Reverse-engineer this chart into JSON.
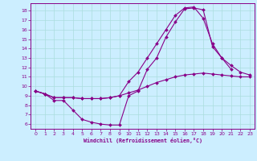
{
  "xlabel": "Windchill (Refroidissement éolien,°C)",
  "bg_color": "#cceeff",
  "plot_bg_color": "#cceeff",
  "grid_color": "#aadddd",
  "line_color": "#880088",
  "xlim": [
    -0.5,
    23.5
  ],
  "ylim": [
    5.5,
    18.8
  ],
  "xticks": [
    0,
    1,
    2,
    3,
    4,
    5,
    6,
    7,
    8,
    9,
    10,
    11,
    12,
    13,
    14,
    15,
    16,
    17,
    18,
    19,
    20,
    21,
    22,
    23
  ],
  "yticks": [
    6,
    7,
    8,
    9,
    10,
    11,
    12,
    13,
    14,
    15,
    16,
    17,
    18
  ],
  "lines": [
    {
      "x": [
        0,
        1,
        2,
        3,
        4,
        5,
        6,
        7,
        8,
        9,
        10,
        11,
        12,
        13,
        14,
        15,
        16,
        17,
        18,
        19,
        20,
        21,
        22,
        23
      ],
      "y": [
        9.5,
        9.2,
        8.5,
        8.5,
        7.5,
        6.5,
        6.2,
        6.0,
        5.9,
        5.9,
        9.0,
        9.5,
        11.8,
        13.0,
        15.2,
        16.8,
        18.2,
        18.3,
        18.1,
        14.2,
        13.0,
        12.2,
        11.5,
        11.2
      ]
    },
    {
      "x": [
        0,
        1,
        2,
        3,
        4,
        5,
        6,
        7,
        8,
        9,
        10,
        11,
        12,
        13,
        14,
        15,
        16,
        17,
        18,
        19,
        20,
        21,
        22,
        23
      ],
      "y": [
        9.5,
        9.2,
        8.8,
        8.8,
        8.8,
        8.7,
        8.7,
        8.7,
        8.8,
        9.0,
        9.3,
        9.6,
        10.0,
        10.4,
        10.7,
        11.0,
        11.2,
        11.3,
        11.4,
        11.3,
        11.2,
        11.1,
        11.0,
        11.0
      ]
    },
    {
      "x": [
        0,
        1,
        2,
        3,
        4,
        5,
        6,
        7,
        8,
        9,
        10,
        11,
        12,
        13,
        14,
        15,
        16,
        17,
        18,
        19,
        20,
        21
      ],
      "y": [
        9.5,
        9.2,
        8.8,
        8.8,
        8.8,
        8.7,
        8.7,
        8.7,
        8.8,
        9.0,
        10.5,
        11.5,
        13.0,
        14.5,
        16.0,
        17.5,
        18.3,
        18.4,
        17.2,
        14.5,
        13.0,
        11.8
      ]
    }
  ]
}
